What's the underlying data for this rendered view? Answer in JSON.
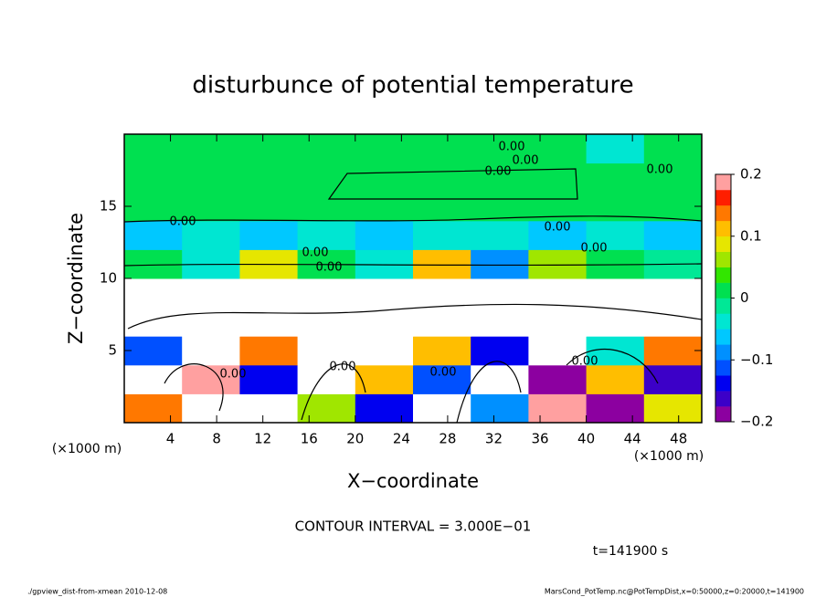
{
  "chart_data": {
    "type": "heatmap",
    "title": "disturbunce of potential temperature",
    "xlabel": "X−coordinate",
    "ylabel": "Z−coordinate",
    "x_unit": "(×1000 m)",
    "y_unit": "(×1000 m)",
    "contour_interval": "CONTOUR INTERVAL = 3.000E−01",
    "time_label": "t=141900 s",
    "contour_label": "0.00",
    "footer_left": "./gpview_dist-from-xmean  2010-12-08",
    "footer_right": "MarsCond_PotTemp.nc@PotTempDist,x=0:50000,z=0:20000,t=141900",
    "xlim": [
      0,
      50
    ],
    "ylim": [
      0,
      20
    ],
    "xticks": [
      4,
      8,
      12,
      16,
      20,
      24,
      28,
      32,
      36,
      40,
      44,
      48
    ],
    "yticks": [
      5,
      10,
      15
    ],
    "x": [
      2.5,
      7.5,
      12.5,
      17.5,
      22.5,
      27.5,
      32.5,
      37.5,
      42.5,
      47.5
    ],
    "z": [
      1,
      3,
      5,
      7,
      9,
      11,
      13,
      15,
      17,
      19
    ],
    "values": [
      [
        0.15,
        -0.25,
        0.25,
        0.05,
        -0.15,
        0.3,
        -0.1,
        0.2,
        -0.18,
        0.08
      ],
      [
        0.3,
        0.18,
        -0.15,
        0.3,
        0.1,
        -0.12,
        0.3,
        -0.2,
        0.12,
        -0.16
      ],
      [
        -0.12,
        0.3,
        0.15,
        -0.3,
        0.3,
        0.12,
        -0.14,
        0.3,
        -0.05,
        0.15
      ],
      [
        0.4,
        -0.3,
        0.35,
        0.4,
        -0.35,
        0.3,
        0.4,
        -0.3,
        0.35,
        0.3
      ],
      [
        -0.4,
        0.35,
        -0.3,
        0.4,
        0.35,
        0.4,
        -0.35,
        0.3,
        0.4,
        -0.3
      ],
      [
        0.02,
        -0.05,
        0.08,
        0.01,
        -0.03,
        0.1,
        -0.08,
        0.05,
        0.0,
        -0.02
      ],
      [
        -0.06,
        -0.05,
        -0.07,
        -0.05,
        -0.06,
        -0.04,
        -0.03,
        -0.06,
        -0.05,
        -0.07
      ],
      [
        0.01,
        0.0,
        0.01,
        0.0,
        0.0,
        0.01,
        0.0,
        0.0,
        0.01,
        0.0
      ],
      [
        0.0,
        0.0,
        0.01,
        0.02,
        0.02,
        0.02,
        0.02,
        0.01,
        0.0,
        0.0
      ],
      [
        0.01,
        0.0,
        0.0,
        0.0,
        0.0,
        0.0,
        0.0,
        0.0,
        -0.05,
        0.0
      ]
    ],
    "clim": [
      -0.2,
      0.2
    ],
    "cticks": [
      {
        "value": -0.2,
        "label": "−0.2"
      },
      {
        "value": -0.1,
        "label": "−0.1"
      },
      0,
      0.1,
      0.2
    ],
    "colors": [
      "#8c00a0",
      "#3c00c8",
      "#0000f0",
      "#0050ff",
      "#0090ff",
      "#00c8ff",
      "#00e6d2",
      "#00e896",
      "#00e050",
      "#32e600",
      "#a0e600",
      "#e6e600",
      "#ffbe00",
      "#ff7800",
      "#ff1e00",
      "#ffa0a0"
    ],
    "out_of_range_color": "#ffffff"
  }
}
